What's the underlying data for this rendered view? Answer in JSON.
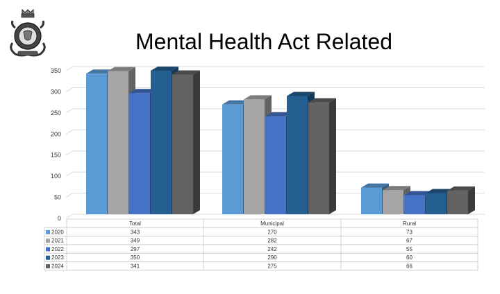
{
  "chart_data": {
    "type": "bar",
    "title": "Mental Health Act Related",
    "categories": [
      "Total",
      "Municipal",
      "Rural"
    ],
    "series": [
      {
        "name": "2020",
        "values": [
          343,
          270,
          73
        ],
        "color": "#5B9BD5"
      },
      {
        "name": "2021",
        "values": [
          349,
          282,
          67
        ],
        "color": "#A5A5A5"
      },
      {
        "name": "2022",
        "values": [
          297,
          242,
          55
        ],
        "color": "#4472C4"
      },
      {
        "name": "2023",
        "values": [
          350,
          290,
          60
        ],
        "color": "#255E91"
      },
      {
        "name": "2024",
        "values": [
          341,
          275,
          66
        ],
        "color": "#636363"
      }
    ],
    "yticks": [
      0,
      50,
      100,
      150,
      200,
      250,
      300,
      350
    ],
    "ylim": [
      0,
      350
    ],
    "grid": true,
    "legend": "data-table-below",
    "three_d": true
  },
  "logo": {
    "icon": "police-crest-icon"
  }
}
